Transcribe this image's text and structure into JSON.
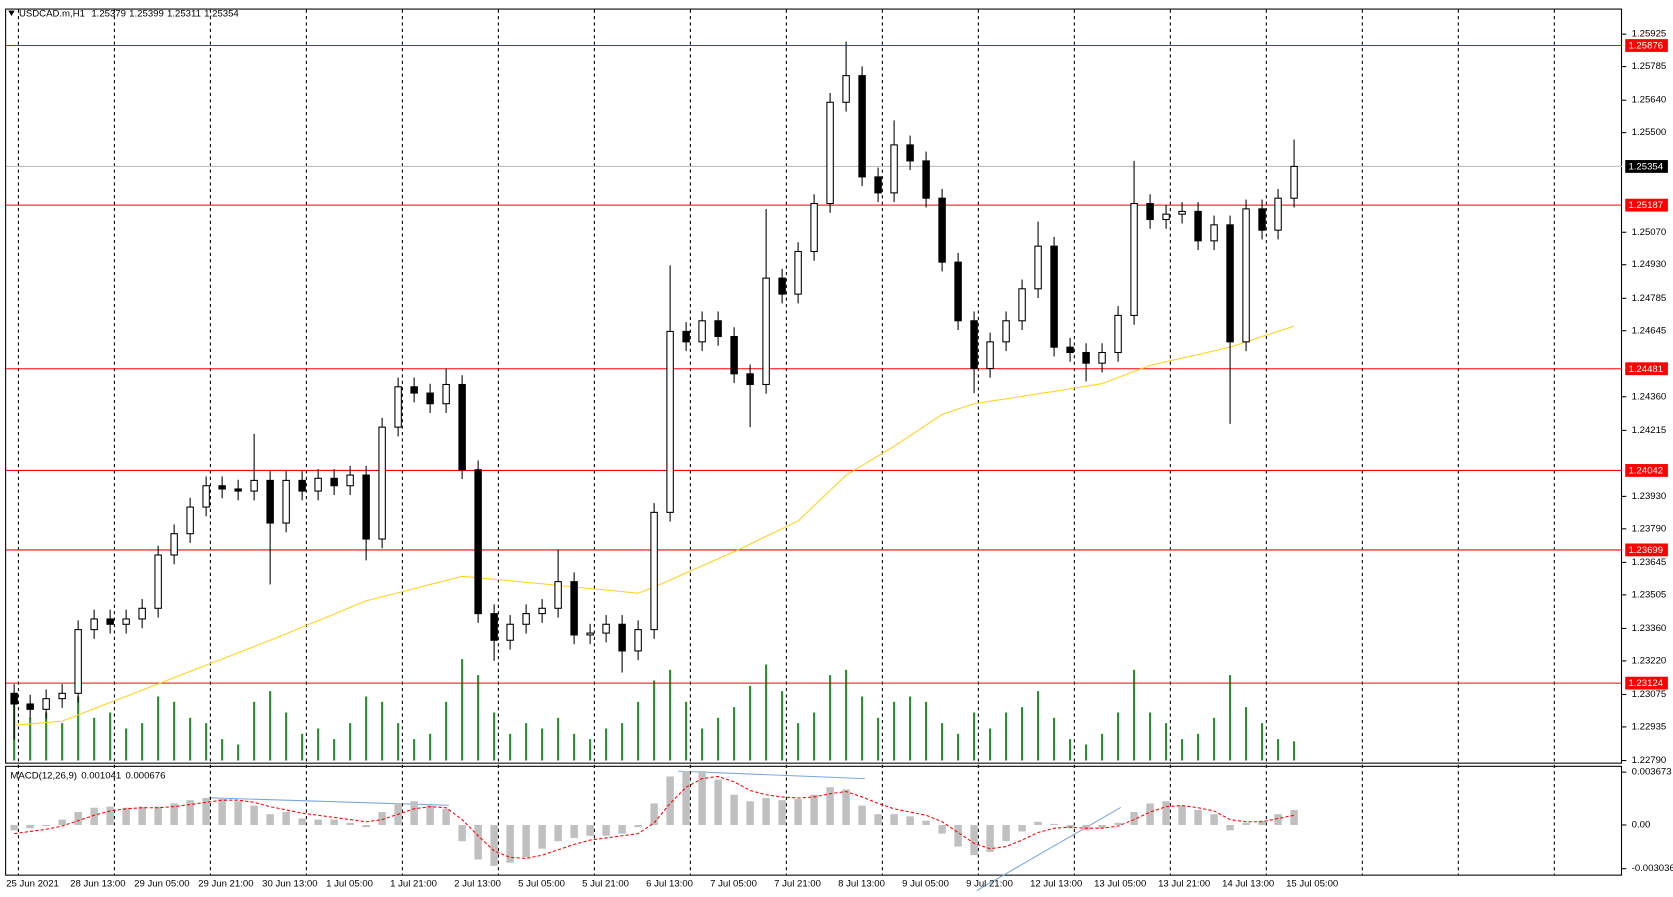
{
  "chart_data": [
    {
      "type": "candlestick",
      "symbol": "USDCAD.m,H1",
      "ohlc": [
        1.25379,
        1.25399,
        1.25311,
        1.25354
      ],
      "categories": [
        "25 Jun 2021",
        null,
        null,
        null,
        "28 Jun 13:00",
        null,
        null,
        null,
        "29 Jun 05:00",
        null,
        null,
        null,
        "29 Jun 21:00",
        null,
        null,
        null,
        "30 Jun 13:00",
        null,
        null,
        null,
        "1 Jul 05:00",
        null,
        null,
        null,
        "1 Jul 21:00",
        null,
        null,
        null,
        "2 Jul 13:00",
        null,
        null,
        null,
        "5 Jul 05:00",
        null,
        null,
        null,
        "5 Jul 21:00",
        null,
        null,
        null,
        "6 Jul 13:00",
        null,
        null,
        null,
        "7 Jul 05:00",
        null,
        null,
        null,
        "7 Jul 21:00",
        null,
        null,
        null,
        "8 Jul 13:00",
        null,
        null,
        null,
        "9 Jul 05:00",
        null,
        null,
        null,
        "9 Jul 21:00",
        null,
        null,
        null,
        "12 Jul 13:00",
        null,
        null,
        null,
        "13 Jul 05:00",
        null,
        null,
        null,
        "13 Jul 21:00",
        null,
        null,
        null,
        "14 Jul 13:00",
        null,
        null,
        null,
        "15 Jul 05:00"
      ],
      "open": [
        1.2308,
        1.23034,
        1.23011,
        1.23057,
        1.2308,
        1.23355,
        1.23401,
        1.23378,
        1.23401,
        1.23447,
        1.23677,
        1.23769,
        1.23884,
        1.23976,
        1.23962,
        1.23953,
        1.23999,
        1.23815,
        1.23999,
        1.23953,
        1.24008,
        1.23976,
        1.24022,
        1.23746,
        1.24229,
        1.24403,
        1.24376,
        1.2433,
        1.24413,
        1.24045,
        1.23424,
        1.23309,
        1.23378,
        1.23424,
        1.23447,
        1.23562,
        1.23332,
        1.2334,
        1.23378,
        1.23263,
        1.23355,
        1.23861,
        1.24642,
        1.24597,
        1.24688,
        1.2462,
        1.24459,
        1.24413,
        1.24872,
        1.24803,
        1.24987,
        1.25194,
        1.25631,
        1.25746,
        1.25309,
        1.2524,
        1.25447,
        1.25378,
        1.25217,
        1.24941,
        1.24688,
        1.24482,
        1.24597,
        1.24688,
        1.24826,
        1.2501,
        1.24574,
        1.24551,
        1.24505,
        1.24551,
        1.24711,
        1.25194,
        1.25125,
        1.25148,
        1.2516,
        1.25033,
        1.25102,
        1.24597,
        1.25171,
        1.25079,
        1.25217
      ],
      "high": [
        1.2312,
        1.23074,
        1.23097,
        1.2312,
        1.23395,
        1.23441,
        1.23441,
        1.23441,
        1.23487,
        1.23717,
        1.23809,
        1.23924,
        1.24016,
        1.24016,
        1.24002,
        1.242,
        1.24039,
        1.24039,
        1.24039,
        1.24048,
        1.24048,
        1.24062,
        1.24062,
        1.24269,
        1.24443,
        1.24443,
        1.24416,
        1.24482,
        1.24453,
        1.24085,
        1.23464,
        1.23418,
        1.23464,
        1.23487,
        1.237,
        1.23602,
        1.2338,
        1.23418,
        1.23418,
        1.23395,
        1.23901,
        1.24927,
        1.24682,
        1.24728,
        1.24728,
        1.2466,
        1.24499,
        1.25171,
        1.24912,
        1.25027,
        1.25234,
        1.25671,
        1.25893,
        1.25786,
        1.25349,
        1.25553,
        1.25487,
        1.25418,
        1.25257,
        1.24981,
        1.24728,
        1.24637,
        1.24728,
        1.24866,
        1.25116,
        1.2505,
        1.24614,
        1.24591,
        1.24591,
        1.24751,
        1.25378,
        1.25234,
        1.25188,
        1.252,
        1.252,
        1.25142,
        1.25142,
        1.25211,
        1.25211,
        1.25257,
        1.2547
      ],
      "low": [
        1.2288,
        1.22971,
        1.22971,
        1.23017,
        1.2304,
        1.23315,
        1.23338,
        1.23338,
        1.23361,
        1.23407,
        1.23637,
        1.23729,
        1.23844,
        1.23922,
        1.23913,
        1.23913,
        1.2355,
        1.23775,
        1.23913,
        1.23913,
        1.23936,
        1.23936,
        1.23654,
        1.23706,
        1.24189,
        1.24336,
        1.2429,
        1.2429,
        1.24005,
        1.23384,
        1.2322,
        1.23269,
        1.23338,
        1.23384,
        1.23407,
        1.23292,
        1.23292,
        1.233,
        1.2317,
        1.23223,
        1.23315,
        1.23821,
        1.24557,
        1.24557,
        1.2458,
        1.24419,
        1.24229,
        1.24373,
        1.24763,
        1.24763,
        1.24947,
        1.25154,
        1.25591,
        1.25269,
        1.252,
        1.252,
        1.25338,
        1.25177,
        1.24901,
        1.24648,
        1.24376,
        1.24442,
        1.24557,
        1.24648,
        1.24786,
        1.24534,
        1.24511,
        1.24426,
        1.24465,
        1.24511,
        1.24671,
        1.25085,
        1.25085,
        1.25108,
        1.24993,
        1.24993,
        1.24243,
        1.24557,
        1.25039,
        1.25039,
        1.25177
      ],
      "close": [
        1.23034,
        1.23011,
        1.23057,
        1.2308,
        1.23355,
        1.23401,
        1.23378,
        1.23401,
        1.23447,
        1.23677,
        1.23769,
        1.23884,
        1.23976,
        1.23962,
        1.23953,
        1.23999,
        1.23815,
        1.23999,
        1.23953,
        1.24008,
        1.23976,
        1.24022,
        1.23746,
        1.24229,
        1.24403,
        1.24376,
        1.2433,
        1.24413,
        1.24045,
        1.23424,
        1.23309,
        1.23378,
        1.23424,
        1.23447,
        1.23562,
        1.23332,
        1.2334,
        1.23378,
        1.23263,
        1.23355,
        1.23861,
        1.24642,
        1.24597,
        1.24688,
        1.2462,
        1.24459,
        1.24413,
        1.24872,
        1.24803,
        1.24987,
        1.25194,
        1.25631,
        1.25746,
        1.25309,
        1.2524,
        1.25447,
        1.25378,
        1.25217,
        1.24941,
        1.24688,
        1.24482,
        1.24597,
        1.24688,
        1.24826,
        1.2501,
        1.24574,
        1.24551,
        1.24505,
        1.24551,
        1.24711,
        1.25194,
        1.25125,
        1.25148,
        1.2516,
        1.25033,
        1.25102,
        1.24597,
        1.25171,
        1.25079,
        1.25217,
        1.25354
      ],
      "ma": [
        1.22942,
        1.22948,
        1.22954,
        1.2296,
        1.22987,
        1.23014,
        1.23041,
        1.23067,
        1.23094,
        1.23121,
        1.23148,
        1.23175,
        1.23202,
        1.23228,
        1.23255,
        1.23282,
        1.23309,
        1.23337,
        1.23366,
        1.23394,
        1.23422,
        1.23451,
        1.23479,
        1.23497,
        1.23514,
        1.23532,
        1.2355,
        1.23567,
        1.23585,
        1.23579,
        1.23572,
        1.23566,
        1.23559,
        1.23553,
        1.23546,
        1.23539,
        1.23532,
        1.23526,
        1.23519,
        1.23512,
        1.23539,
        1.23569,
        1.236,
        1.2363,
        1.23661,
        1.23691,
        1.23724,
        1.23758,
        1.23791,
        1.23824,
        1.2389,
        1.23956,
        1.24022,
        1.24063,
        1.24105,
        1.24146,
        1.24192,
        1.24238,
        1.24284,
        1.24307,
        1.2433,
        1.24341,
        1.24351,
        1.24362,
        1.24373,
        1.24383,
        1.24394,
        1.24406,
        1.24417,
        1.24443,
        1.24469,
        1.24495,
        1.24511,
        1.24527,
        1.24542,
        1.24558,
        1.24574,
        1.24597,
        1.2462,
        1.24642,
        1.24665
      ],
      "volume": [
        2400,
        1600,
        1800,
        1400,
        2400,
        1600,
        1800,
        1200,
        1400,
        2400,
        2200,
        1600,
        1400,
        800,
        600,
        2200,
        2600,
        1800,
        1000,
        1200,
        800,
        1400,
        2400,
        2200,
        1400,
        800,
        1000,
        2200,
        3800,
        3200,
        1800,
        1000,
        1400,
        1200,
        1600,
        1000,
        800,
        1200,
        1400,
        2200,
        3000,
        3400,
        2200,
        1200,
        1600,
        2000,
        2800,
        3600,
        2600,
        1400,
        1800,
        3200,
        3400,
        2400,
        1600,
        2200,
        2400,
        2200,
        1400,
        1000,
        1800,
        1200,
        1800,
        2000,
        2600,
        1600,
        800,
        600,
        1000,
        1800,
        3400,
        1800,
        1400,
        800,
        1000,
        1600,
        3200,
        2000,
        1400,
        800,
        720
      ],
      "ylim": [
        1.22781,
        1.26031
      ],
      "yticks": [
        1.25925,
        1.25785,
        {
          "value": 1.2564,
          "label": "1.25640"
        },
        {
          "value": 1.255,
          "label": "1.25500"
        },
        {
          "value": 1.2507,
          "label": "1.25070"
        },
        {
          "value": 1.2493,
          "label": "1.24930"
        },
        1.24785,
        1.24645,
        {
          "value": 1.2436,
          "label": "1.24360"
        },
        1.24215,
        {
          "value": 1.2393,
          "label": "1.23930"
        },
        {
          "value": 1.2379,
          "label": "1.23790"
        },
        1.23645,
        1.23505,
        {
          "value": 1.2336,
          "label": "1.23360"
        },
        {
          "value": 1.2322,
          "label": "1.23220"
        },
        1.23075,
        1.22935,
        {
          "value": 1.2279,
          "label": "1.22790"
        }
      ],
      "levels": [
        1.25876,
        1.25187,
        1.24481,
        1.24042,
        1.23699,
        1.23124
      ],
      "level_color": "#ff0000",
      "ma_color": "#ffd21f",
      "volume_color": "#2e8b2e",
      "bull_color": "#ffffff",
      "bear_color": "#000000",
      "grid": true
    },
    {
      "type": "macd",
      "title": "MACD(12,26,9)",
      "histogram": [
        -0.000375,
        -0.000225,
        -7.5e-05,
        0.000375,
        0.0009,
        0.0012,
        0.001275,
        0.0012,
        0.001275,
        0.001275,
        0.0015,
        0.001725,
        0.001875,
        0.001875,
        0.00165,
        0.00135,
        0.00075,
        0.0009,
        0.00045,
        0.000375,
        0.000375,
        0.00015,
        -0.00015,
        0.0009,
        0.0015,
        0.00165,
        0.00135,
        0.001125,
        -0.001125,
        -0.0024,
        -0.00285,
        -0.002625,
        -0.00225,
        -0.00165,
        -0.001125,
        -0.0009,
        -0.00075,
        -0.00075,
        -0.0006,
        -0.00015,
        0.0015,
        0.003375,
        0.00375,
        0.00375,
        0.00315,
        0.0021,
        0.00165,
        0.001875,
        0.001725,
        0.0018,
        0.0021,
        0.002625,
        0.002475,
        0.00135,
        0.00075,
        0.00075,
        0.0006,
        0.0003,
        -0.0006,
        -0.0015,
        -0.0021,
        -0.001875,
        -0.001125,
        -0.00045,
        0.000225,
        7.5e-05,
        -0.000225,
        -0.000375,
        -0.000225,
        0.00015,
        0.0009,
        0.0015,
        0.00165,
        0.00135,
        0.00105,
        0.00075,
        -0.000375,
        0.00015,
        0.0003,
        0.00075,
        0.001041
      ],
      "signal": [
        -0.0006,
        -0.00045,
        -0.0003,
        -7.5e-05,
        0.0003,
        0.000675,
        0.000975,
        0.001125,
        0.0012,
        0.0012,
        0.001275,
        0.001425,
        0.001575,
        0.001725,
        0.001725,
        0.001575,
        0.001275,
        0.00105,
        0.000825,
        0.000675,
        0.000525,
        0.000375,
        0.000225,
        0.000375,
        0.00075,
        0.001125,
        0.001275,
        0.0012,
        0.000375,
        -0.00075,
        -0.0018,
        -0.00225,
        -0.002325,
        -0.0021,
        -0.001725,
        -0.00135,
        -0.00105,
        -0.0009,
        -0.00075,
        -0.0006,
        0.00015,
        0.0015,
        0.002625,
        0.003225,
        0.003375,
        0.003,
        0.0024,
        0.0021,
        0.00195,
        0.001875,
        0.00195,
        0.002175,
        0.002325,
        0.00195,
        0.0015,
        0.001125,
        0.0009,
        0.000675,
        0.000225,
        -0.000525,
        -0.001275,
        -0.00165,
        -0.0015,
        -0.00105,
        -0.000525,
        -0.000225,
        -0.00015,
        -0.000225,
        -0.000225,
        -7.5e-05,
        0.000375,
        0.0009,
        0.001275,
        0.00135,
        0.0012,
        0.000975,
        0.000375,
        0.000225,
        0.000225,
        0.00045,
        0.000676
      ],
      "histogram_color": "#c0c0c0",
      "signal_color": "#ff0000",
      "ylim": [
        -0.00345,
        0.00404
      ],
      "yticks": [
        0.003673,
        {
          "value": 0,
          "label": "0.00"
        },
        -0.003036
      ]
    }
  ]
}
